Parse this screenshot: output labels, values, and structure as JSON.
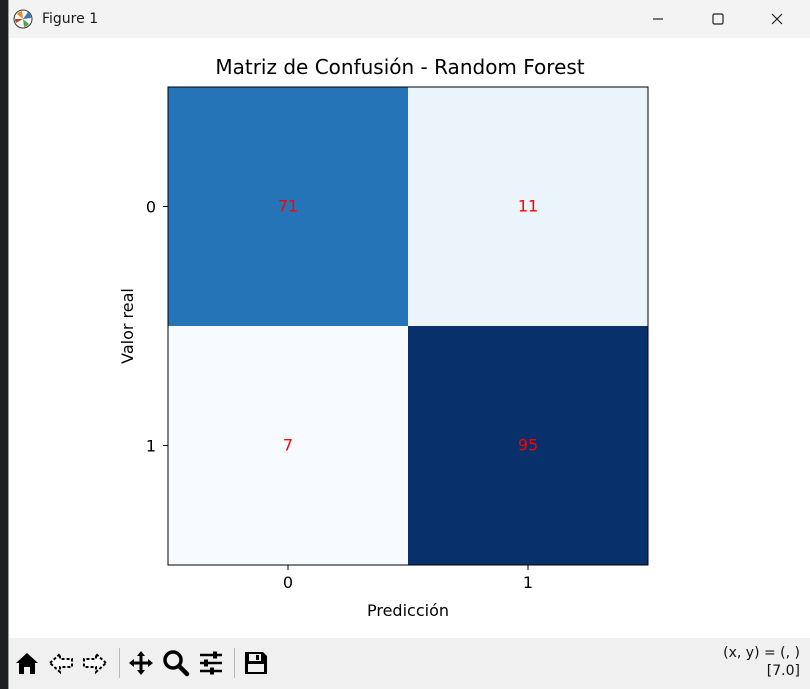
{
  "window": {
    "title": "Figure 1"
  },
  "chart_data": {
    "type": "heatmap",
    "title": "Matriz de Confusión - Random Forest",
    "xlabel": "Predicción",
    "ylabel": "Valor real",
    "x_categories": [
      "0",
      "1"
    ],
    "y_categories": [
      "0",
      "1"
    ],
    "values": [
      [
        71,
        11
      ],
      [
        7,
        95
      ]
    ],
    "colormap": "Blues",
    "annotation_color": "#ff0000",
    "colors": [
      [
        "#2474b7",
        "#ebf3fb"
      ],
      [
        "#f7fbff",
        "#08306b"
      ]
    ]
  },
  "toolbar": {
    "buttons": [
      {
        "name": "home-button",
        "icon": "home-icon"
      },
      {
        "name": "back-button",
        "icon": "back-arrow-icon"
      },
      {
        "name": "forward-button",
        "icon": "forward-arrow-icon"
      },
      {
        "name": "pan-button",
        "icon": "move-icon"
      },
      {
        "name": "zoom-button",
        "icon": "zoom-icon"
      },
      {
        "name": "configure-subplots-button",
        "icon": "sliders-icon"
      },
      {
        "name": "save-button",
        "icon": "save-icon"
      }
    ],
    "coords_line1": "(x, y) = (, )",
    "coords_line2": "[7.0]"
  }
}
